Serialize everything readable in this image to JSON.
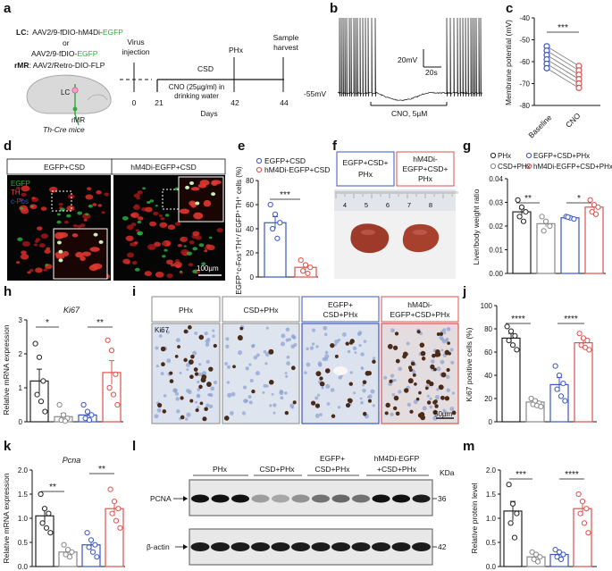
{
  "panel_letters": [
    "a",
    "b",
    "c",
    "d",
    "e",
    "f",
    "g",
    "h",
    "i",
    "j",
    "k",
    "l",
    "m"
  ],
  "panel_a": {
    "lc_prefix": "LC:",
    "lc_line1": "AAV2/9-fDIO-hM4Di-",
    "lc_line1_egfp": "EGFP",
    "or_text": "or",
    "lc_line2": "AAV2/9-fDIO-",
    "lc_line2_egfp": "EGFP",
    "rmr_prefix": "rMR",
    "rmr_text": ": AAV2/Retro-DIO-FLP",
    "brain_lc": "LC",
    "brain_rmr": "rMR",
    "mice": "Th-Cre mice",
    "virus_injection": [
      "Virus",
      "injection"
    ],
    "csd": "CSD",
    "cno": [
      "CNO (25µg/ml) in",
      "drinking water"
    ],
    "phx": "PHx",
    "harvest": [
      "Sample",
      "harvest"
    ],
    "ticks": [
      "0",
      "21",
      "42",
      "44"
    ],
    "days": "Days"
  },
  "panel_b": {
    "scale_mv": "20mV",
    "scale_s": "20s",
    "baseline": "-55mV",
    "cno": "CNO, 5µM"
  },
  "panel_c": {
    "ylabel": "Membrane potential (mV)",
    "yticks": [
      "-40",
      "-50",
      "-60",
      "-70",
      "-80"
    ],
    "xcats": [
      "Baseline",
      "CNO"
    ],
    "sig": "***",
    "baseline_vals": [
      -53,
      -55,
      -57,
      -59,
      -61,
      -63
    ],
    "cno_vals": [
      -62,
      -64,
      -66,
      -68,
      -70,
      -72
    ]
  },
  "panel_d": {
    "titles": [
      "EGFP+CSD",
      "hM4Di-EGFP+CSD"
    ],
    "legend": [
      "EGFP",
      "TH",
      "c-Fos"
    ],
    "scale": "100µm"
  },
  "panel_e": {
    "legend": [
      "EGFP+CSD",
      "hM4Di-EGFP+CSD"
    ],
    "ylabel": "EGFP⁺c-Fos⁺TH⁺/ EGFP⁺TH⁺ cells (%)",
    "yticks": [
      "0",
      "20",
      "40",
      "60",
      "80"
    ],
    "sig": "***"
  },
  "panel_f": {
    "titles": [
      [
        "EGFP+CSD+",
        "PHx"
      ],
      [
        "hM4Di-",
        "EGFP+CSD+",
        "PHx"
      ]
    ],
    "ruler": [
      "4",
      "5",
      "6",
      "7",
      "8"
    ]
  },
  "panel_g": {
    "legend": [
      "PHx",
      "EGFP+CSD+PHx",
      "CSD+PHx",
      "hM4Di-EGFP+CSD+PHx"
    ],
    "ylabel": "Liver/body weight ratio",
    "yticks": [
      "0.00",
      "0.01",
      "0.02",
      "0.03",
      "0.04"
    ],
    "sig": [
      "**",
      "*"
    ]
  },
  "panel_h": {
    "title": "Ki67",
    "ylabel": "Relative mRNA expression",
    "yticks": [
      "0",
      "1",
      "2",
      "3"
    ],
    "sig": [
      "*",
      "**"
    ]
  },
  "panel_i": {
    "titles": [
      [
        "PHx"
      ],
      [
        "CSD+PHx"
      ],
      [
        "EGFP+",
        "CSD+PHx"
      ],
      [
        "hM4Di-",
        "EGFP+CSD+PHx"
      ]
    ],
    "stain": "Ki67",
    "scale": "50µm"
  },
  "panel_j": {
    "ylabel": "Ki67 positive cells (%)",
    "yticks": [
      "0",
      "20",
      "40",
      "60",
      "80",
      "100"
    ],
    "sig": [
      "****",
      "****"
    ]
  },
  "panel_k": {
    "title": "Pcna",
    "ylabel": "Relative mRNA expression",
    "yticks": [
      "0.0",
      "0.5",
      "1.0",
      "1.5",
      "2.0"
    ],
    "sig": [
      "**",
      "**"
    ]
  },
  "panel_l": {
    "groups": [
      "PHx",
      "CSD+PHx",
      "EGFP+\nCSD+PHx",
      "hM4Di-EGFP\n+CSD+PHx"
    ],
    "kda": "KDa",
    "band1": "PCNA",
    "band1_kda": "36",
    "band2": "β-actin",
    "band2_kda": "42"
  },
  "panel_m": {
    "ylabel": "Relative protein level",
    "yticks": [
      "0.0",
      "0.5",
      "1.0",
      "1.5",
      "2.0"
    ],
    "sig": [
      "***",
      "****"
    ]
  },
  "colors": {
    "phx": "#222222",
    "csd": "#888888",
    "egfp": "#3a55c8",
    "hm4di": "#e0504d",
    "green": "#2faa3c"
  },
  "chart_data": [
    {
      "type": "scatter",
      "panel": "c",
      "ylabel": "Membrane potential (mV)",
      "ylim": [
        -80,
        -40
      ],
      "categories": [
        "Baseline",
        "CNO"
      ],
      "series": [
        {
          "values": [
            -53,
            -55,
            -57,
            -59,
            -61,
            -63
          ]
        },
        {
          "values": [
            -62,
            -64,
            -66,
            -68,
            -70,
            -72
          ]
        }
      ]
    },
    {
      "type": "bar",
      "panel": "e",
      "ylabel": "EGFP⁺c-Fos⁺TH⁺/ EGFP⁺TH⁺ cells (%)",
      "ylim": [
        0,
        80
      ],
      "categories": [
        "EGFP+CSD",
        "hM4Di-EGFP+CSD"
      ],
      "values": [
        45,
        8
      ],
      "errors": [
        5,
        2
      ],
      "points": [
        [
          60,
          52,
          45,
          40,
          32
        ],
        [
          14,
          10,
          8,
          5,
          3
        ]
      ]
    },
    {
      "type": "bar",
      "panel": "g",
      "ylabel": "Liver/body weight ratio",
      "ylim": [
        0,
        0.04
      ],
      "categories": [
        "PHx",
        "CSD+PHx",
        "EGFP+CSD+PHx",
        "hM4Di-EGFP+CSD+PHx"
      ],
      "values": [
        0.026,
        0.021,
        0.0235,
        0.028
      ],
      "errors": [
        0.0012,
        0.0012,
        0.0006,
        0.0012
      ],
      "points": [
        [
          0.031,
          0.028,
          0.026,
          0.024,
          0.022
        ],
        [
          0.024,
          0.022,
          0.02,
          0.018
        ],
        [
          0.024,
          0.0235,
          0.023,
          0.0238
        ],
        [
          0.031,
          0.029,
          0.028,
          0.026,
          0.025
        ]
      ]
    },
    {
      "type": "bar",
      "panel": "h",
      "ylabel": "Relative mRNA expression",
      "ylim": [
        0,
        3
      ],
      "categories": [
        "PHx",
        "CSD+PHx",
        "EGFP+CSD+PHx",
        "hM4Di-EGFP+CSD+PHx"
      ],
      "values": [
        1.2,
        0.15,
        0.2,
        1.45
      ],
      "errors": [
        0.35,
        0.1,
        0.1,
        0.35
      ],
      "points": [
        [
          2.3,
          1.9,
          1.2,
          0.8,
          0.6,
          0.3
        ],
        [
          0.5,
          0.2,
          0.1,
          0.05,
          0.02
        ],
        [
          0.5,
          0.3,
          0.2,
          0.1,
          0.05
        ],
        [
          2.4,
          2.1,
          1.4,
          1.0,
          0.8,
          0.5
        ]
      ]
    },
    {
      "type": "bar",
      "panel": "j",
      "ylabel": "Ki67 positive cells (%)",
      "ylim": [
        0,
        100
      ],
      "categories": [
        "PHx",
        "CSD+PHx",
        "EGFP+CSD+PHx",
        "hM4Di-EGFP+CSD+PHx"
      ],
      "values": [
        72,
        17,
        32,
        68
      ],
      "errors": [
        4,
        2,
        6,
        3
      ],
      "points": [
        [
          82,
          78,
          74,
          70,
          66,
          62
        ],
        [
          20,
          18,
          16,
          15,
          14,
          13
        ],
        [
          48,
          40,
          33,
          28,
          22,
          18
        ],
        [
          76,
          72,
          70,
          66,
          64,
          62
        ]
      ]
    },
    {
      "type": "bar",
      "panel": "k",
      "ylabel": "Relative mRNA expression",
      "ylim": [
        0,
        2
      ],
      "categories": [
        "PHx",
        "CSD+PHx",
        "EGFP+CSD+PHx",
        "hM4Di-EGFP+CSD+PHx"
      ],
      "values": [
        1.05,
        0.3,
        0.45,
        1.2
      ],
      "errors": [
        0.15,
        0.05,
        0.1,
        0.15
      ],
      "points": [
        [
          1.5,
          1.2,
          1.1,
          0.9,
          0.8,
          0.7
        ],
        [
          0.45,
          0.35,
          0.3,
          0.25,
          0.2
        ],
        [
          0.7,
          0.55,
          0.45,
          0.4,
          0.3,
          0.2
        ],
        [
          1.6,
          1.35,
          1.2,
          1.1,
          0.95,
          0.8
        ]
      ]
    },
    {
      "type": "bar",
      "panel": "m",
      "ylabel": "Relative protein level",
      "ylim": [
        0,
        2
      ],
      "categories": [
        "PHx",
        "CSD+PHx",
        "EGFP+CSD+PHx",
        "hM4Di-EGFP+CSD+PHx"
      ],
      "values": [
        1.15,
        0.2,
        0.25,
        1.2
      ],
      "errors": [
        0.2,
        0.05,
        0.05,
        0.15
      ],
      "points": [
        [
          1.7,
          1.3,
          1.1,
          0.9,
          0.6
        ],
        [
          0.3,
          0.25,
          0.2,
          0.15,
          0.1
        ],
        [
          0.35,
          0.3,
          0.25,
          0.2,
          0.15
        ],
        [
          1.5,
          1.35,
          1.2,
          1.1,
          0.9,
          0.7
        ]
      ]
    }
  ]
}
